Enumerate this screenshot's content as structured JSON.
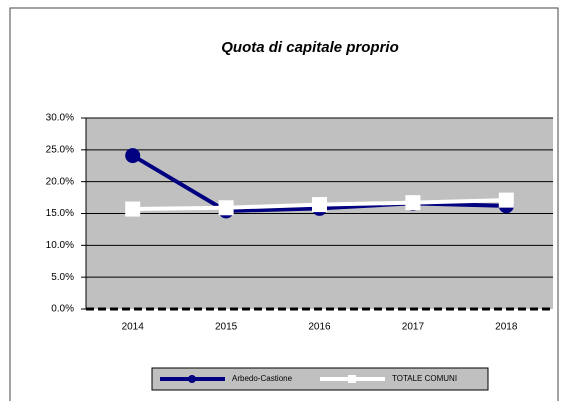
{
  "chart_data": {
    "type": "line",
    "title": "Quota di capitale proprio",
    "categories": [
      "2014",
      "2015",
      "2016",
      "2017",
      "2018"
    ],
    "series": [
      {
        "name": "Arbedo-Castione",
        "color": "#000080",
        "marker": "circle",
        "values": [
          24.1,
          15.4,
          15.8,
          16.6,
          16.2
        ]
      },
      {
        "name": "TOTALE COMUNI",
        "color": "#ffffff",
        "marker": "square",
        "values": [
          15.7,
          15.9,
          16.4,
          16.7,
          17.1
        ]
      }
    ],
    "ylim": [
      0,
      30
    ],
    "yticks": [
      {
        "value": 0,
        "label": "0.0%"
      },
      {
        "value": 5,
        "label": "5.0%"
      },
      {
        "value": 10,
        "label": "10.0%"
      },
      {
        "value": 15,
        "label": "15.0%"
      },
      {
        "value": 20,
        "label": "20.0%"
      },
      {
        "value": 25,
        "label": "25.0%"
      },
      {
        "value": 30,
        "label": "30.0%"
      }
    ],
    "grid": true,
    "plot_background": "#c0c0c0",
    "legend": "bottom"
  }
}
